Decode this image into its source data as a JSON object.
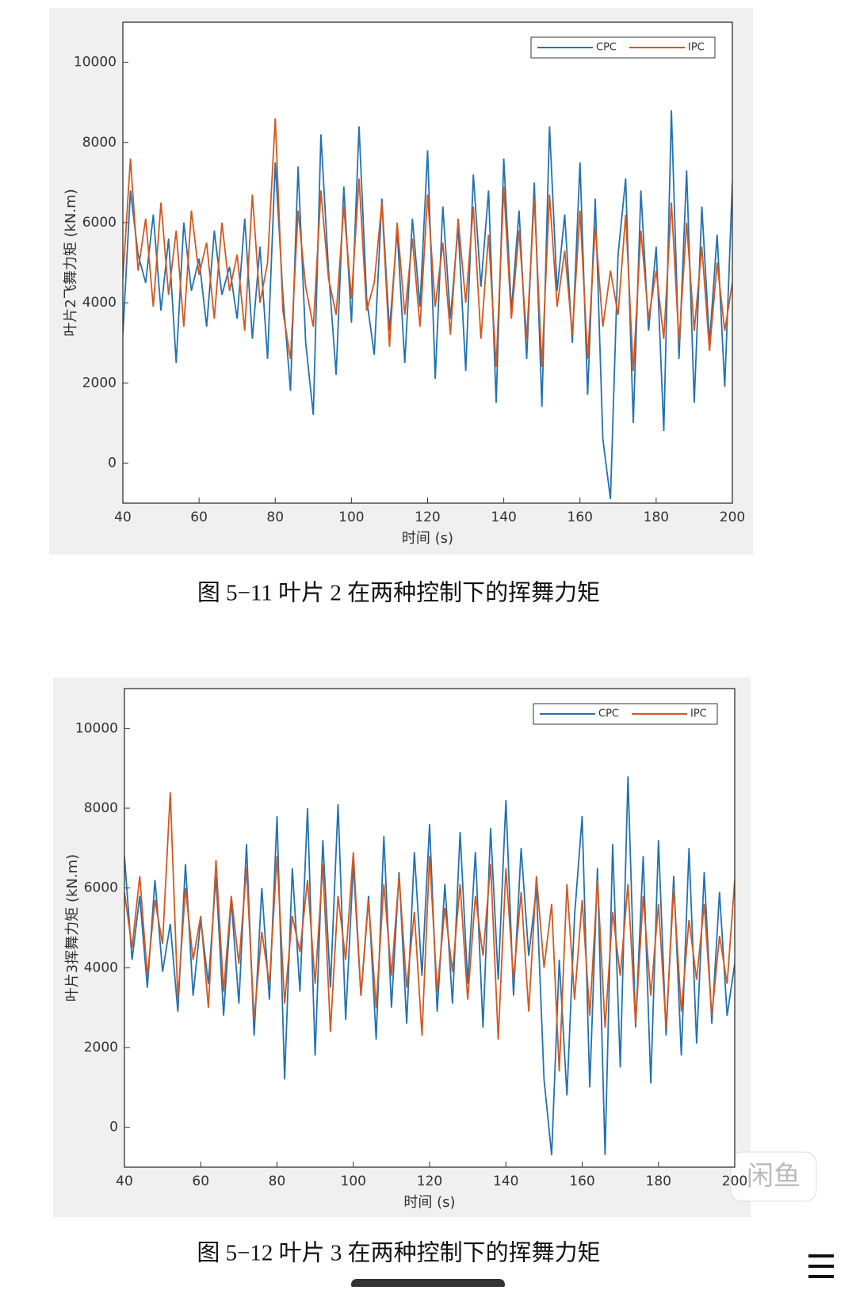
{
  "chart_data": [
    {
      "type": "line",
      "ylabel": "叶片2飞舞力矩 (kN.m)",
      "xlabel": "时间 (s)",
      "caption": "图 5−11 叶片 2 在两种控制下的挥舞力矩",
      "xlim": [
        40,
        200
      ],
      "xticks": [
        40,
        60,
        80,
        100,
        120,
        140,
        160,
        180,
        200
      ],
      "ylim": [
        -1000,
        11000
      ],
      "yticks": [
        0,
        2000,
        4000,
        6000,
        8000,
        10000
      ],
      "legend": "upper right",
      "x": [
        40,
        42,
        44,
        46,
        48,
        50,
        52,
        54,
        56,
        58,
        60,
        62,
        64,
        66,
        68,
        70,
        72,
        74,
        76,
        78,
        80,
        82,
        84,
        86,
        88,
        90,
        92,
        94,
        96,
        98,
        100,
        102,
        104,
        106,
        108,
        110,
        112,
        114,
        116,
        118,
        120,
        122,
        124,
        126,
        128,
        130,
        132,
        134,
        136,
        138,
        140,
        142,
        144,
        146,
        148,
        150,
        152,
        154,
        156,
        158,
        160,
        162,
        164,
        166,
        168,
        170,
        172,
        174,
        176,
        178,
        180,
        182,
        184,
        186,
        188,
        190,
        192,
        194,
        196,
        198,
        200
      ],
      "series": [
        {
          "name": "CPC",
          "color": "#2372b0",
          "values": [
            3200,
            6800,
            5200,
            4500,
            6200,
            3800,
            5600,
            2500,
            6000,
            4300,
            5100,
            3400,
            5800,
            4200,
            4900,
            3600,
            6100,
            3100,
            5400,
            2600,
            7500,
            4200,
            1800,
            7400,
            3000,
            1200,
            8200,
            4800,
            2200,
            6900,
            3500,
            8400,
            4100,
            2700,
            6600,
            3300,
            5800,
            2500,
            6100,
            3900,
            7800,
            2100,
            6400,
            3600,
            5900,
            2300,
            7200,
            4400,
            6800,
            1500,
            7600,
            3800,
            6300,
            2600,
            7000,
            1400,
            8400,
            4300,
            6200,
            3000,
            7500,
            1700,
            6600,
            600,
            -900,
            5200,
            7100,
            1000,
            6800,
            3300,
            5400,
            800,
            8800,
            2600,
            7300,
            1500,
            6400,
            3000,
            5700,
            1900,
            7000
          ]
        },
        {
          "name": "IPC",
          "color": "#d4581f",
          "values": [
            4600,
            7600,
            4800,
            6100,
            3900,
            6500,
            4200,
            5800,
            3400,
            6300,
            4700,
            5500,
            3600,
            6000,
            4300,
            5200,
            3300,
            6700,
            4000,
            5000,
            8600,
            3800,
            2600,
            6300,
            4400,
            3400,
            6800,
            4600,
            3700,
            6400,
            4100,
            7100,
            3800,
            4500,
            6500,
            2900,
            6000,
            3700,
            5600,
            3400,
            6700,
            3900,
            5500,
            3200,
            6100,
            4000,
            6400,
            3100,
            5700,
            2400,
            6900,
            3600,
            5800,
            3100,
            6600,
            2400,
            6700,
            3900,
            5300,
            3200,
            6300,
            2600,
            5900,
            3400,
            4800,
            3700,
            6200,
            2300,
            5800,
            3600,
            4800,
            3100,
            6500,
            3000,
            6000,
            3300,
            5400,
            2800,
            5000,
            3300,
            4500
          ]
        }
      ]
    },
    {
      "type": "line",
      "ylabel": "叶片3挥舞力矩 (kN.m)",
      "xlabel": "时间 (s)",
      "caption": "图 5−12 叶片 3 在两种控制下的挥舞力矩",
      "xlim": [
        40,
        200
      ],
      "xticks": [
        40,
        60,
        80,
        100,
        120,
        140,
        160,
        180,
        200
      ],
      "ylim": [
        -1000,
        11000
      ],
      "yticks": [
        0,
        2000,
        4000,
        6000,
        8000,
        10000
      ],
      "legend": "upper right",
      "x": [
        40,
        42,
        44,
        46,
        48,
        50,
        52,
        54,
        56,
        58,
        60,
        62,
        64,
        66,
        68,
        70,
        72,
        74,
        76,
        78,
        80,
        82,
        84,
        86,
        88,
        90,
        92,
        94,
        96,
        98,
        100,
        102,
        104,
        106,
        108,
        110,
        112,
        114,
        116,
        118,
        120,
        122,
        124,
        126,
        128,
        130,
        132,
        134,
        136,
        138,
        140,
        142,
        144,
        146,
        148,
        150,
        152,
        154,
        156,
        158,
        160,
        162,
        164,
        166,
        168,
        170,
        172,
        174,
        176,
        178,
        180,
        182,
        184,
        186,
        188,
        190,
        192,
        194,
        196,
        198,
        200
      ],
      "series": [
        {
          "name": "CPC",
          "color": "#2372b0",
          "values": [
            6800,
            4200,
            5800,
            3500,
            6200,
            3900,
            5100,
            2900,
            6600,
            3300,
            5200,
            3600,
            6300,
            2800,
            5700,
            3100,
            7100,
            2300,
            6000,
            3200,
            7800,
            1200,
            6500,
            3400,
            8000,
            1800,
            7200,
            3500,
            8100,
            2700,
            6600,
            3300,
            5800,
            2200,
            7300,
            3000,
            6400,
            2600,
            6900,
            3800,
            7600,
            2900,
            6100,
            3100,
            7400,
            3600,
            6900,
            2500,
            7500,
            3700,
            8200,
            3300,
            7000,
            4300,
            6000,
            1200,
            -700,
            4200,
            800,
            5300,
            7800,
            1000,
            6500,
            -700,
            7100,
            1500,
            8800,
            2500,
            6800,
            1100,
            7200,
            2300,
            6300,
            1800,
            7000,
            2100,
            6400,
            2600,
            5900,
            2800,
            4100
          ]
        },
        {
          "name": "IPC",
          "color": "#d4581f",
          "values": [
            5900,
            4500,
            6300,
            3800,
            5700,
            4600,
            8400,
            3200,
            6000,
            4200,
            5300,
            3000,
            6700,
            3400,
            5800,
            4100,
            6500,
            2700,
            4900,
            3600,
            6800,
            3100,
            5300,
            4400,
            6200,
            3600,
            6600,
            2400,
            5800,
            4200,
            6900,
            3300,
            5700,
            3000,
            6100,
            3800,
            6300,
            3500,
            5400,
            2300,
            6800,
            3400,
            5500,
            3900,
            6100,
            3200,
            5800,
            4300,
            6600,
            2200,
            6500,
            3700,
            5900,
            2900,
            6300,
            4000,
            5600,
            1400,
            6100,
            3200,
            5700,
            2800,
            6200,
            2500,
            5400,
            3800,
            6100,
            2600,
            5800,
            3300,
            5600,
            2500,
            6000,
            2900,
            5200,
            3700,
            5600,
            2800,
            4800,
            3600,
            6200
          ]
        }
      ]
    }
  ],
  "watermark": "闲鱼"
}
